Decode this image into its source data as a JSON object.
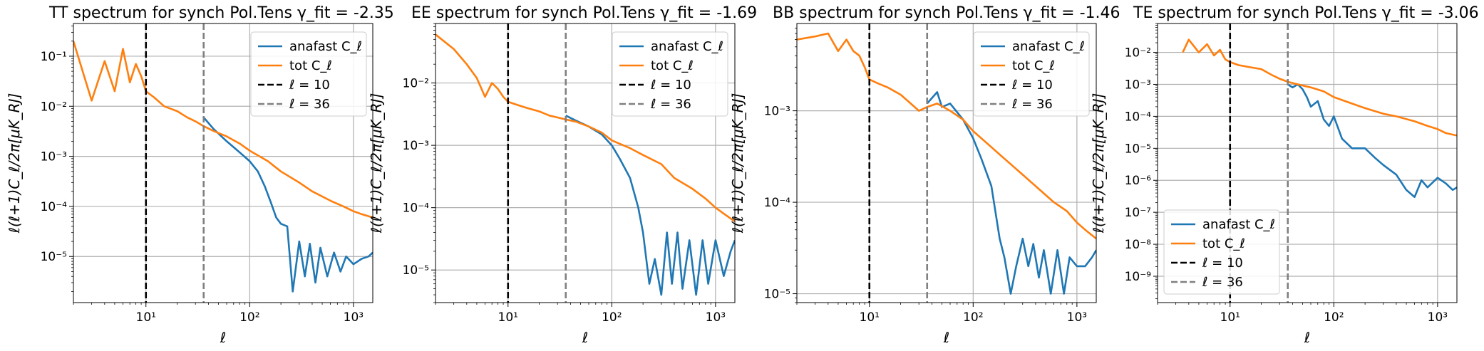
{
  "figure": {
    "xlabel": "ℓ",
    "ylabel": "ℓ(ℓ+1)C_ℓ/2π[μK_RJ]"
  },
  "legend": {
    "entries": [
      "anafast C_ℓ",
      "tot  C_ℓ",
      "ℓ = 10",
      "ℓ = 36"
    ]
  },
  "colors": {
    "anafast": "#1f77b4",
    "tot": "#ff7f0e",
    "l10": "#000000",
    "l36": "#808080",
    "grid": "#b0b0b0"
  },
  "chart_data": [
    {
      "type": "line",
      "title": "TT   spectrum for synch  Pol.Tens  γ_fit = -2.35",
      "xlabel": "ℓ",
      "ylabel": "ℓ(ℓ+1)C_ℓ/2π[μK_RJ]",
      "xscale": "log",
      "yscale": "log",
      "xlim": [
        2,
        1536
      ],
      "ylim": [
        1.2e-06,
        0.45
      ],
      "xticks": [
        "10^1",
        "10^2",
        "10^3"
      ],
      "yticks": [
        "10^-5",
        "10^-4",
        "10^-3",
        "10^-2",
        "10^-1"
      ],
      "vlines": [
        {
          "x": 10,
          "label": "ℓ = 10"
        },
        {
          "x": 36,
          "label": "ℓ = 36"
        }
      ],
      "legend_position": "top-right",
      "grid": true,
      "series": [
        {
          "name": "anafast C_ℓ",
          "x": [
            36,
            45,
            60,
            80,
            100,
            120,
            140,
            160,
            180,
            200,
            230,
            260,
            300,
            340,
            380,
            430,
            480,
            560,
            650,
            750,
            850,
            1000,
            1200,
            1400,
            1536
          ],
          "y": [
            0.006,
            0.0035,
            0.002,
            0.0012,
            0.0008,
            0.0005,
            0.00025,
            0.00012,
            6e-05,
            4.5e-05,
            4e-05,
            2e-06,
            2e-05,
            4e-06,
            1.8e-05,
            3e-06,
            1.5e-05,
            4e-06,
            1.2e-05,
            5e-06,
            1e-05,
            7e-06,
            9e-06,
            1e-05,
            1.2e-05
          ]
        },
        {
          "name": "tot  C_ℓ",
          "x": [
            2,
            3,
            4,
            5,
            6,
            7,
            8,
            9,
            10,
            12,
            15,
            20,
            25,
            30,
            36,
            45,
            60,
            80,
            100,
            150,
            200,
            300,
            400,
            600,
            800,
            1000,
            1200,
            1536
          ],
          "y": [
            0.2,
            0.013,
            0.08,
            0.02,
            0.14,
            0.03,
            0.07,
            0.04,
            0.02,
            0.015,
            0.01,
            0.008,
            0.006,
            0.005,
            0.004,
            0.0032,
            0.0025,
            0.0018,
            0.0013,
            0.0008,
            0.0005,
            0.0003,
            0.0002,
            0.00013,
            0.0001,
            8e-05,
            7e-05,
            6e-05
          ]
        }
      ]
    },
    {
      "type": "line",
      "title": "EE   spectrum for synch  Pol.Tens  γ_fit = -1.69",
      "xlabel": "ℓ",
      "ylabel": "ℓ(ℓ+1)C_ℓ/2π[μK_RJ]",
      "xscale": "log",
      "yscale": "log",
      "xlim": [
        2,
        1536
      ],
      "ylim": [
        3e-06,
        0.09
      ],
      "xticks": [
        "10^1",
        "10^2",
        "10^3"
      ],
      "yticks": [
        "10^-5",
        "10^-4",
        "10^-3",
        "10^-2"
      ],
      "vlines": [
        {
          "x": 10,
          "label": "ℓ = 10"
        },
        {
          "x": 36,
          "label": "ℓ = 36"
        }
      ],
      "legend_position": "top-right",
      "grid": true,
      "series": [
        {
          "name": "anafast C_ℓ",
          "x": [
            36,
            45,
            60,
            80,
            100,
            120,
            150,
            180,
            200,
            230,
            260,
            300,
            340,
            380,
            430,
            480,
            560,
            650,
            750,
            850,
            1000,
            1200,
            1400,
            1536
          ],
          "y": [
            0.003,
            0.0025,
            0.002,
            0.0015,
            0.001,
            0.0006,
            0.0003,
            0.0001,
            4e-05,
            6e-06,
            1.5e-05,
            4e-06,
            4e-05,
            6e-06,
            4e-05,
            5e-06,
            3e-05,
            4e-06,
            3e-05,
            6e-06,
            3e-05,
            8e-06,
            2e-05,
            3e-05
          ]
        },
        {
          "name": "tot  C_ℓ",
          "x": [
            2,
            3,
            4,
            5,
            6,
            7,
            8,
            9,
            10,
            12,
            15,
            20,
            25,
            30,
            36,
            45,
            60,
            80,
            100,
            150,
            200,
            300,
            400,
            600,
            800,
            1000,
            1200,
            1536
          ],
          "y": [
            0.06,
            0.035,
            0.02,
            0.012,
            0.006,
            0.01,
            0.008,
            0.006,
            0.005,
            0.0045,
            0.004,
            0.0035,
            0.003,
            0.0028,
            0.0026,
            0.0024,
            0.002,
            0.0016,
            0.0012,
            0.0009,
            0.0007,
            0.0005,
            0.0003,
            0.0002,
            0.00014,
            0.0001,
            8e-05,
            6e-05
          ]
        }
      ]
    },
    {
      "type": "line",
      "title": "BB   spectrum for synch  Pol.Tens  γ_fit = -1.46",
      "xlabel": "ℓ",
      "ylabel": "ℓ(ℓ+1)C_ℓ/2π[μK_RJ]",
      "xscale": "log",
      "yscale": "log",
      "xlim": [
        2,
        1536
      ],
      "ylim": [
        8e-06,
        0.009
      ],
      "xticks": [
        "10^1",
        "10^2",
        "10^3"
      ],
      "yticks": [
        "10^-5",
        "10^-4",
        "10^-3"
      ],
      "vlines": [
        {
          "x": 10,
          "label": "ℓ = 10"
        },
        {
          "x": 36,
          "label": "ℓ = 36"
        }
      ],
      "legend_position": "top-right",
      "grid": true,
      "series": [
        {
          "name": "anafast C_ℓ",
          "x": [
            36,
            45,
            50,
            60,
            80,
            100,
            120,
            150,
            180,
            200,
            230,
            260,
            300,
            340,
            380,
            430,
            480,
            560,
            650,
            750,
            850,
            1000,
            1200,
            1400,
            1536
          ],
          "y": [
            0.0012,
            0.0016,
            0.0011,
            0.0012,
            0.0008,
            0.0005,
            0.0003,
            0.00015,
            4e-05,
            2.5e-05,
            1e-05,
            2e-05,
            4e-05,
            2e-05,
            3.5e-05,
            1.5e-05,
            3e-05,
            1e-05,
            3e-05,
            1e-05,
            2.5e-05,
            2e-05,
            2e-05,
            2.5e-05,
            3e-05
          ]
        },
        {
          "name": "tot  C_ℓ",
          "x": [
            2,
            3,
            4,
            5,
            6,
            7,
            8,
            9,
            10,
            12,
            15,
            20,
            25,
            30,
            36,
            45,
            60,
            80,
            100,
            150,
            200,
            300,
            400,
            600,
            800,
            1000,
            1200,
            1536
          ],
          "y": [
            0.006,
            0.0065,
            0.007,
            0.0045,
            0.006,
            0.0045,
            0.004,
            0.003,
            0.0022,
            0.002,
            0.0018,
            0.0015,
            0.0012,
            0.001,
            0.0011,
            0.0012,
            0.001,
            0.0008,
            0.0006,
            0.0004,
            0.0003,
            0.0002,
            0.00015,
            0.0001,
            8e-05,
            6e-05,
            5e-05,
            4e-05
          ]
        }
      ]
    },
    {
      "type": "line",
      "title": "TE   spectrum for synch  Pol.Tens  γ_fit = -3.06",
      "xlabel": "ℓ",
      "ylabel": "ℓ(ℓ+1)C_ℓ/2π[μK_RJ]",
      "xscale": "log",
      "yscale": "log",
      "xlim": [
        2,
        1536
      ],
      "ylim": [
        1.5e-10,
        0.08
      ],
      "xticks": [
        "10^1",
        "10^2",
        "10^3"
      ],
      "yticks": [
        "10^-9",
        "10^-8",
        "10^-7",
        "10^-6",
        "10^-5",
        "10^-4",
        "10^-3",
        "10^-2"
      ],
      "vlines": [
        {
          "x": 10,
          "label": "ℓ = 10"
        },
        {
          "x": 36,
          "label": "ℓ = 36"
        }
      ],
      "legend_position": "lower-left",
      "grid": true,
      "series": [
        {
          "name": "anafast C_ℓ",
          "x": [
            36,
            40,
            45,
            50,
            55,
            60,
            70,
            80,
            90,
            100,
            120,
            150,
            200,
            250,
            300,
            400,
            500,
            600,
            700,
            800,
            1000,
            1200,
            1400,
            1536
          ],
          "y": [
            0.001,
            0.0008,
            0.001,
            0.0007,
            0.0004,
            0.0002,
            0.0003,
            8e-05,
            5e-05,
            0.0001,
            2e-05,
            1e-05,
            1e-05,
            5e-06,
            3e-06,
            1.5e-06,
            5e-07,
            3e-07,
            1e-06,
            6e-07,
            1.2e-06,
            8e-07,
            5e-07,
            6e-07
          ]
        },
        {
          "name": "tot  C_ℓ",
          "x": [
            3.5,
            4,
            5,
            6,
            7,
            8,
            9,
            10,
            12,
            15,
            20,
            25,
            30,
            36,
            45,
            60,
            80,
            100,
            150,
            200,
            300,
            400,
            600,
            800,
            1000,
            1200,
            1536
          ],
          "y": [
            0.01,
            0.025,
            0.01,
            0.018,
            0.008,
            0.012,
            0.006,
            0.005,
            0.004,
            0.0035,
            0.003,
            0.002,
            0.0015,
            0.0012,
            0.001,
            0.0008,
            0.0006,
            0.0004,
            0.00025,
            0.00018,
            0.00012,
            0.0001,
            7e-05,
            5e-05,
            4e-05,
            3e-05,
            2.5e-05
          ]
        }
      ]
    }
  ]
}
